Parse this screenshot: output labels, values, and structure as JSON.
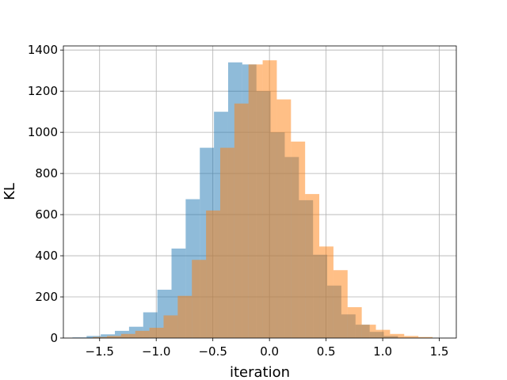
{
  "chart_data": {
    "type": "bar",
    "title": "",
    "xlabel": "iteration",
    "ylabel": "KL",
    "xlim": [
      -1.82,
      1.65
    ],
    "ylim": [
      0,
      1420
    ],
    "xticks": [
      -1.5,
      -1.0,
      -0.5,
      0.0,
      0.5,
      1.0,
      1.5
    ],
    "xtick_labels": [
      "−1.5",
      "−1.0",
      "−0.5",
      "0.0",
      "0.5",
      "1.0",
      "1.5"
    ],
    "yticks": [
      0,
      200,
      400,
      600,
      800,
      1000,
      1200,
      1400
    ],
    "ytick_labels": [
      "0",
      "200",
      "400",
      "600",
      "800",
      "1000",
      "1200",
      "1400"
    ],
    "grid": true,
    "legend": "none",
    "series": [
      {
        "color": "#1f77b4",
        "opacity": 0.5,
        "bin_edges": [
          -1.74,
          -1.615,
          -1.49,
          -1.365,
          -1.24,
          -1.115,
          -0.99,
          -0.865,
          -0.74,
          -0.615,
          -0.49,
          -0.365,
          -0.24,
          -0.115,
          0.01,
          0.135,
          0.26,
          0.385,
          0.51,
          0.635,
          0.76,
          0.885,
          1.01,
          1.135
        ],
        "counts": [
          3,
          10,
          18,
          35,
          55,
          125,
          235,
          435,
          675,
          925,
          1100,
          1340,
          1330,
          1200,
          1000,
          880,
          670,
          405,
          255,
          115,
          65,
          30,
          10
        ]
      },
      {
        "color": "#ff7f0e",
        "opacity": 0.5,
        "bin_edges": [
          -1.56,
          -1.435,
          -1.31,
          -1.185,
          -1.06,
          -0.935,
          -0.81,
          -0.685,
          -0.56,
          -0.435,
          -0.31,
          -0.185,
          -0.06,
          0.065,
          0.19,
          0.315,
          0.44,
          0.565,
          0.69,
          0.815,
          0.94,
          1.065,
          1.19,
          1.315,
          1.44
        ],
        "counts": [
          5,
          10,
          20,
          35,
          50,
          110,
          205,
          380,
          620,
          925,
          1140,
          1330,
          1350,
          1160,
          955,
          700,
          445,
          330,
          150,
          65,
          40,
          20,
          10,
          5
        ]
      }
    ]
  }
}
